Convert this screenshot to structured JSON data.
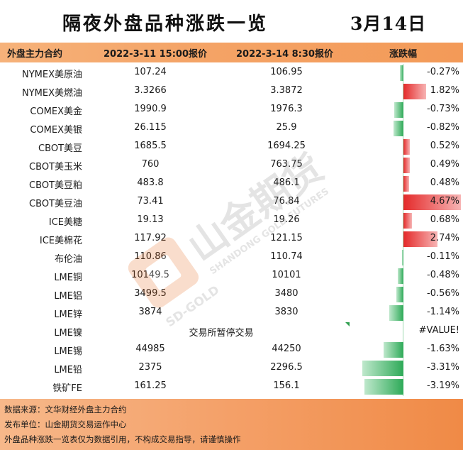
{
  "header": {
    "title": "隔夜外盘品种涨跌一览",
    "date": "3月14日"
  },
  "columns": {
    "name": "外盘主力合约",
    "price1": "2022-3-11 15:00报价",
    "price2": "2022-3-14 8:30报价",
    "change": "涨跌幅"
  },
  "rows": [
    {
      "name": "NYMEX美原油",
      "p1": "107.24",
      "p2": "106.95",
      "chg": "-0.27%",
      "pct": -0.27
    },
    {
      "name": "NYMEX美燃油",
      "p1": "3.3266",
      "p2": "3.3872",
      "chg": "1.82%",
      "pct": 1.82
    },
    {
      "name": "COMEX美金",
      "p1": "1990.9",
      "p2": "1976.3",
      "chg": "-0.73%",
      "pct": -0.73
    },
    {
      "name": "COMEX美银",
      "p1": "26.115",
      "p2": "25.9",
      "chg": "-0.82%",
      "pct": -0.82
    },
    {
      "name": "CBOT美豆",
      "p1": "1685.5",
      "p2": "1694.25",
      "chg": "0.52%",
      "pct": 0.52
    },
    {
      "name": "CBOT美玉米",
      "p1": "760",
      "p2": "763.75",
      "chg": "0.49%",
      "pct": 0.49
    },
    {
      "name": "CBOT美豆粕",
      "p1": "483.8",
      "p2": "486.1",
      "chg": "0.48%",
      "pct": 0.48
    },
    {
      "name": "CBOT美豆油",
      "p1": "73.41",
      "p2": "76.84",
      "chg": "4.67%",
      "pct": 4.67
    },
    {
      "name": "ICE美糖",
      "p1": "19.13",
      "p2": "19.26",
      "chg": "0.68%",
      "pct": 0.68
    },
    {
      "name": "ICE美棉花",
      "p1": "117.92",
      "p2": "121.15",
      "chg": "2.74%",
      "pct": 2.74
    },
    {
      "name": "布伦油",
      "p1": "110.86",
      "p2": "110.74",
      "chg": "-0.11%",
      "pct": -0.11
    },
    {
      "name": "LME铜",
      "p1": "10149.5",
      "p2": "10101",
      "chg": "-0.48%",
      "pct": -0.48
    },
    {
      "name": "LME铝",
      "p1": "3499.5",
      "p2": "3480",
      "chg": "-0.56%",
      "pct": -0.56
    },
    {
      "name": "LME锌",
      "p1": "3874",
      "p2": "3830",
      "chg": "-1.14%",
      "pct": -1.14
    },
    {
      "name": "LME镍",
      "note": "交易所暂停交易",
      "chg": "#VALUE!",
      "pct": null
    },
    {
      "name": "LME锡",
      "p1": "44985",
      "p2": "44250",
      "chg": "-1.63%",
      "pct": -1.63
    },
    {
      "name": "LME铅",
      "p1": "2375",
      "p2": "2296.5",
      "chg": "-3.31%",
      "pct": -3.31
    },
    {
      "name": "铁矿FE",
      "p1": "161.25",
      "p2": "156.1",
      "chg": "-3.19%",
      "pct": -3.19
    }
  ],
  "footer": {
    "source": "数据来源：文华财经外盘主力合约",
    "publisher": "发布单位：山金期货交易运作中心",
    "disclaimer": "外盘品种涨跌一览表仅为数据引用，不构成交易指导，请谨慎操作"
  },
  "watermark": {
    "cn": "山金期货",
    "en": "SHANDONG GOLD FUTURES",
    "sd": "SD-GOLD"
  },
  "colors": {
    "header_orange": "#f4a467",
    "up_red": "#e42a2a",
    "down_green": "#2eaa58"
  }
}
